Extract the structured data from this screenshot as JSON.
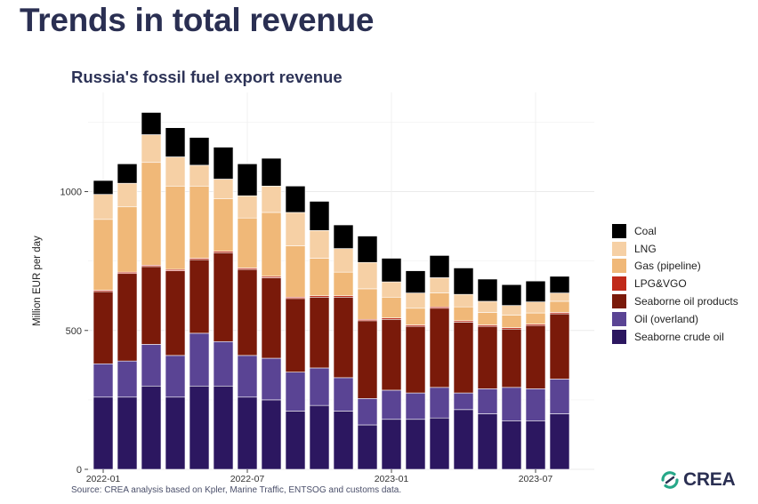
{
  "slide_title": "Trends in total revenue",
  "source_note": "Source: CREA analysis based on Kpler, Marine Traffic, ENTSOG and customs data.",
  "logo_text": "CREA",
  "chart_data": {
    "type": "bar",
    "stacked": true,
    "title": "Russia's fossil fuel export revenue",
    "ylabel": "Million EUR per day",
    "xlabel": "",
    "ylim": [
      0,
      1300
    ],
    "yticks": [
      0,
      500,
      1000
    ],
    "grid": true,
    "legend_position": "right",
    "categories": [
      "2022-01",
      "2022-02",
      "2022-03",
      "2022-04",
      "2022-05",
      "2022-06",
      "2022-07",
      "2022-08",
      "2022-09",
      "2022-10",
      "2022-11",
      "2022-12",
      "2023-01",
      "2023-02",
      "2023-03",
      "2023-04",
      "2023-05",
      "2023-06",
      "2023-07",
      "2023-08"
    ],
    "xtick_labels": [
      {
        "category": "2022-01",
        "label": "2022-01"
      },
      {
        "category": "2022-07",
        "label": "2022-07"
      },
      {
        "category": "2023-01",
        "label": "2023-01"
      },
      {
        "category": "2023-07",
        "label": "2023-07"
      }
    ],
    "series": [
      {
        "name": "Seaborne crude oil",
        "color": "#2c1760",
        "values": [
          260,
          260,
          300,
          260,
          300,
          300,
          260,
          250,
          210,
          230,
          210,
          160,
          180,
          180,
          185,
          215,
          200,
          175,
          175,
          200
        ]
      },
      {
        "name": "Oil (overland)",
        "color": "#5a4494",
        "values": [
          120,
          130,
          150,
          150,
          190,
          160,
          150,
          150,
          140,
          135,
          120,
          95,
          105,
          95,
          110,
          60,
          90,
          120,
          115,
          125
        ]
      },
      {
        "name": "Seaborne oil products",
        "color": "#7a1a0a",
        "values": [
          260,
          315,
          280,
          305,
          265,
          320,
          310,
          290,
          265,
          255,
          290,
          280,
          255,
          240,
          285,
          255,
          225,
          210,
          228,
          235
        ]
      },
      {
        "name": "LPG&VGO",
        "color": "#c02a1a",
        "values": [
          5,
          5,
          5,
          5,
          5,
          5,
          5,
          5,
          5,
          5,
          5,
          5,
          5,
          5,
          5,
          5,
          5,
          5,
          5,
          5
        ]
      },
      {
        "name": "Gas (pipeline)",
        "color": "#f0b878",
        "values": [
          255,
          235,
          370,
          300,
          260,
          190,
          180,
          230,
          185,
          135,
          85,
          110,
          75,
          60,
          50,
          50,
          45,
          45,
          40,
          40
        ]
      },
      {
        "name": "LNG",
        "color": "#f6d0a5",
        "values": [
          90,
          85,
          100,
          105,
          75,
          70,
          80,
          95,
          120,
          100,
          85,
          95,
          55,
          55,
          55,
          45,
          40,
          35,
          40,
          30
        ]
      },
      {
        "name": "Coal",
        "color": "#000000",
        "values": [
          50,
          70,
          80,
          105,
          100,
          115,
          115,
          100,
          95,
          105,
          85,
          95,
          85,
          80,
          80,
          95,
          80,
          75,
          75,
          60
        ]
      }
    ]
  }
}
